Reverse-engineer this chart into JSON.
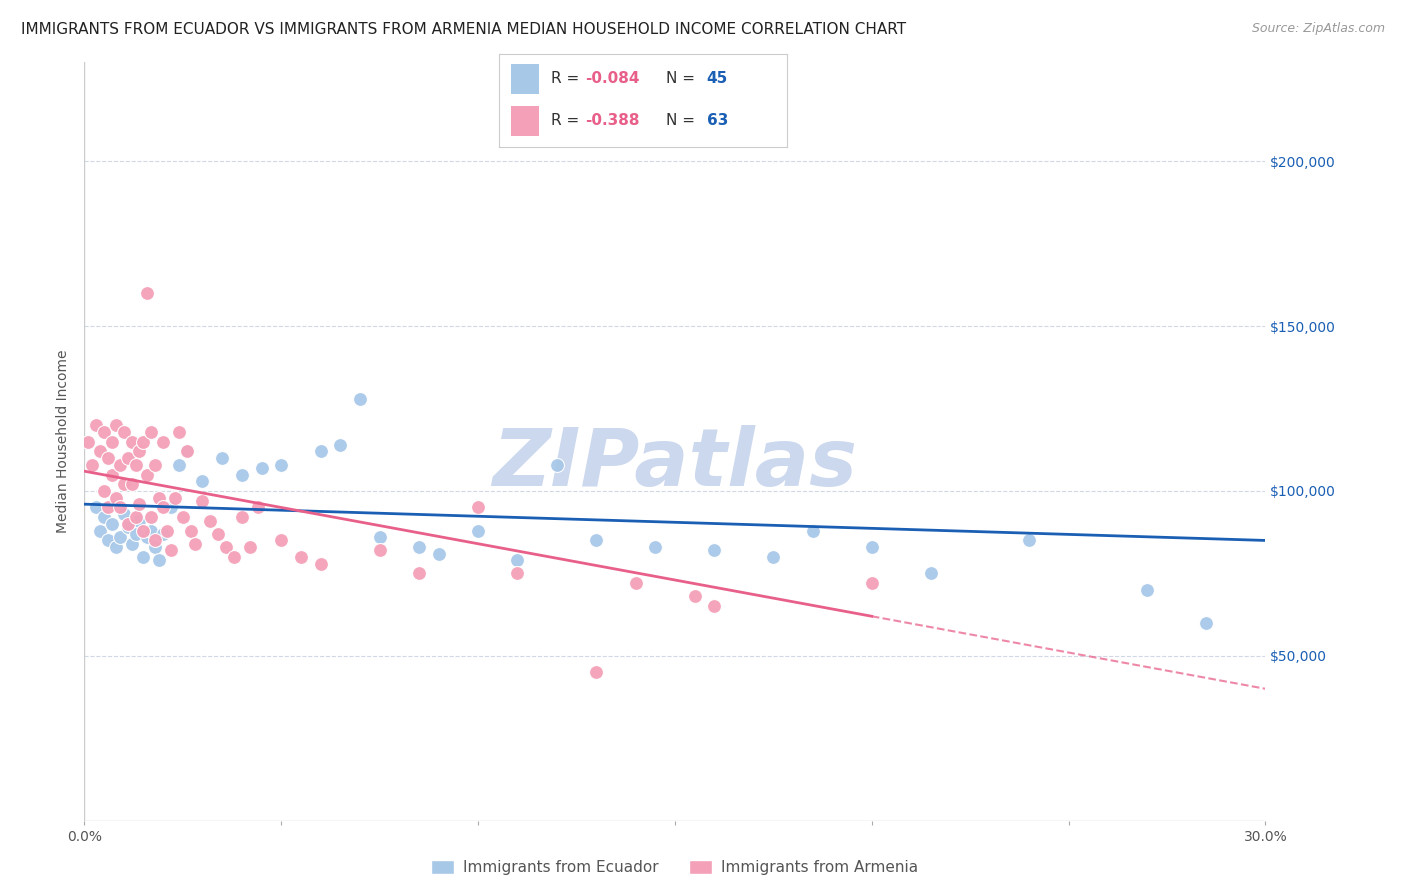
{
  "title": "IMMIGRANTS FROM ECUADOR VS IMMIGRANTS FROM ARMENIA MEDIAN HOUSEHOLD INCOME CORRELATION CHART",
  "source": "Source: ZipAtlas.com",
  "xlabel": "",
  "ylabel": "Median Household Income",
  "xlim": [
    0.0,
    0.3
  ],
  "ylim": [
    0,
    230000
  ],
  "xticks": [
    0.0,
    0.05,
    0.1,
    0.15,
    0.2,
    0.25,
    0.3
  ],
  "xticklabels": [
    "0.0%",
    "",
    "",
    "",
    "",
    "",
    "30.0%"
  ],
  "ytick_positions": [
    50000,
    100000,
    150000,
    200000
  ],
  "ytick_labels": [
    "$50,000",
    "$100,000",
    "$150,000",
    "$200,000"
  ],
  "ecuador_color": "#a8c8e8",
  "armenia_color": "#f4a0b8",
  "ecuador_line_color": "#1a5fb4",
  "armenia_line_color": "#e8608a",
  "ecuador_R": -0.084,
  "ecuador_N": 45,
  "armenia_R": -0.388,
  "armenia_N": 63,
  "watermark": "ZIPatlas",
  "watermark_color": "#ccd8ee",
  "legend_label_color": "#1a5fb4",
  "legend_R_color": "#e8608a",
  "background_color": "#ffffff",
  "grid_color": "#d0d8e8",
  "title_fontsize": 11,
  "axis_label_fontsize": 10,
  "tick_fontsize": 10,
  "legend_fontsize": 11
}
